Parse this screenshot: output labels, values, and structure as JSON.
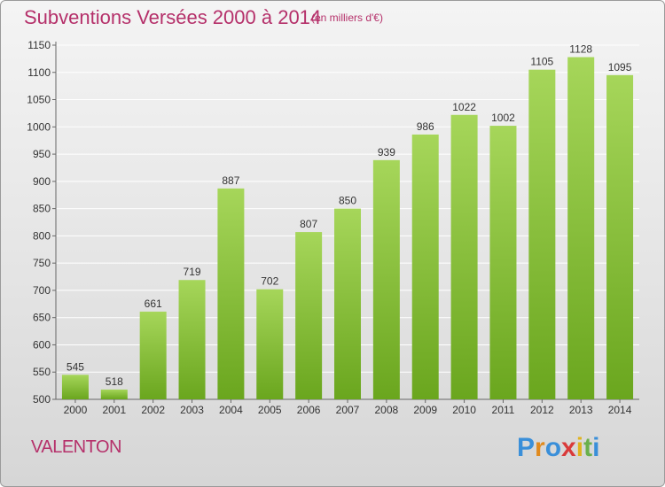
{
  "header": {
    "title": "Subventions Versées 2000 à 2014",
    "subtitle": "(en milliers d'€)"
  },
  "footer": {
    "city": "VALENTON",
    "logo_text": "Proxiti",
    "logo_colors": [
      "#3a8fd9",
      "#e08a1e",
      "#3a8fd9",
      "#d93a3a",
      "#e0b31e",
      "#6ab04c",
      "#3a8fd9"
    ]
  },
  "colors": {
    "title": "#b5306a",
    "bar_light": "#a6d65a",
    "bar_dark": "#6aa61e"
  },
  "chart_data": {
    "type": "bar",
    "categories": [
      "2000",
      "2001",
      "2002",
      "2003",
      "2004",
      "2005",
      "2006",
      "2007",
      "2008",
      "2009",
      "2010",
      "2011",
      "2012",
      "2013",
      "2014"
    ],
    "values": [
      545,
      518,
      661,
      719,
      887,
      702,
      807,
      850,
      939,
      986,
      1022,
      1002,
      1105,
      1128,
      1095
    ],
    "ylim": [
      500,
      1150
    ],
    "yticks": [
      500,
      550,
      600,
      650,
      700,
      750,
      800,
      850,
      900,
      950,
      1000,
      1050,
      1100,
      1150
    ],
    "grid": true,
    "xlabel": "",
    "ylabel": ""
  }
}
